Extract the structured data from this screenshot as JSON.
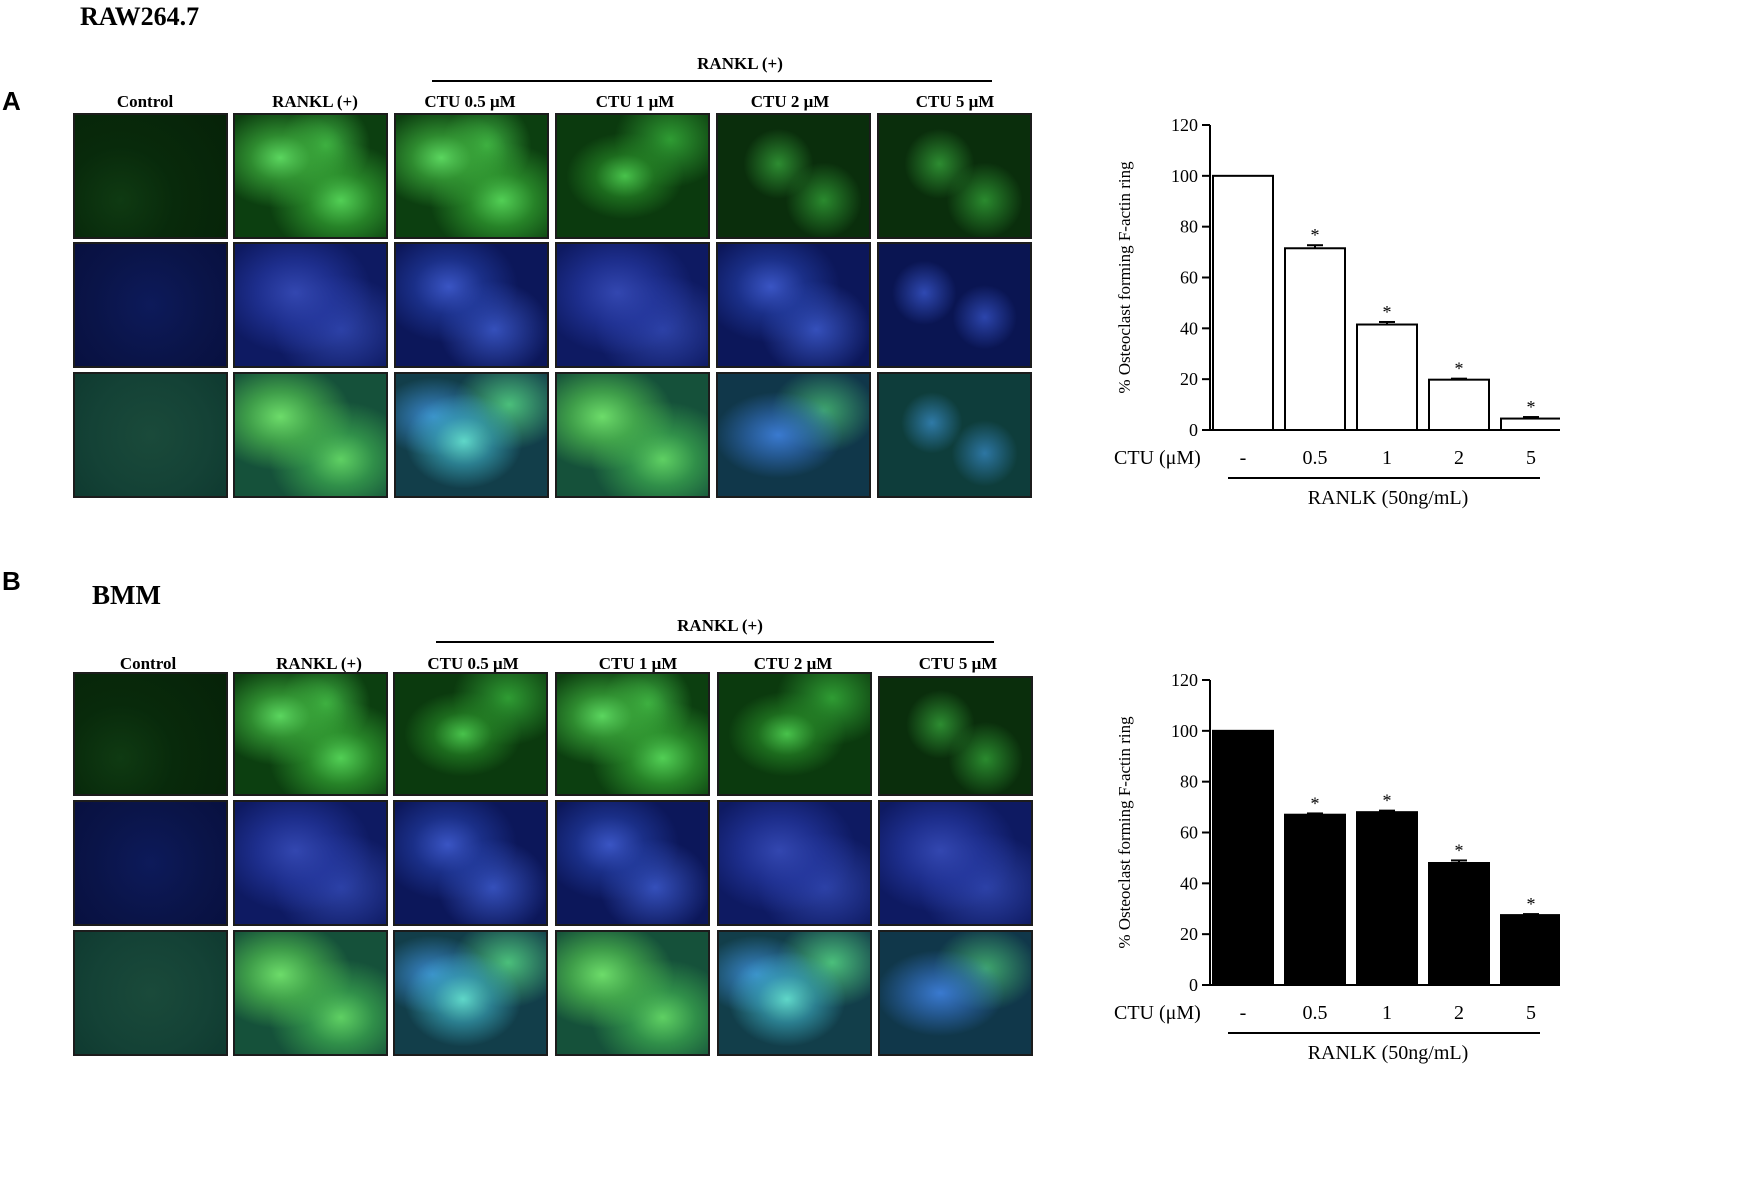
{
  "panel_a": {
    "letter": "A",
    "cell_line": "RAW264.7",
    "rankl_header": "RANKL (+)",
    "columns": [
      "Control",
      "RANKL (+)",
      "CTU 0.5 μM",
      "CTU 1 μM",
      "CTU 2 μM",
      "CTU 5 μM"
    ]
  },
  "panel_b": {
    "letter": "B",
    "cell_line": "BMM",
    "rankl_header": "RANKL (+)",
    "columns": [
      "Control",
      "RANKL (+)",
      "CTU 0.5 μM",
      "CTU 1 μM",
      "CTU 2 μM",
      "CTU 5 μM"
    ]
  },
  "colors": {
    "bar_a_fill": "#ffffff",
    "bar_b_fill": "#000000",
    "axis": "#000000"
  },
  "chart_data": [
    {
      "type": "bar",
      "categories": [
        "-",
        "0.5",
        "1",
        "2",
        "5"
      ],
      "values": [
        100,
        71.5,
        41.5,
        19.8,
        4.5
      ],
      "errors": [
        0,
        1.2,
        1.0,
        0.4,
        0.6
      ],
      "significant": [
        "",
        "*",
        "*",
        "*",
        "*"
      ],
      "ylabel": "% Osteoclast forming F-actin ring",
      "xlabel_prefix": "CTU (μM)",
      "group_label": "RANLK (50ng/mL)",
      "yticks": [
        "0",
        "20",
        "40",
        "60",
        "80",
        "100",
        "120"
      ],
      "ylim": [
        0,
        120
      ],
      "fill": "white"
    },
    {
      "type": "bar",
      "categories": [
        "-",
        "0.5",
        "1",
        "2",
        "5"
      ],
      "values": [
        100,
        67,
        68,
        48,
        27.5
      ],
      "errors": [
        0,
        0.5,
        0.6,
        1.0,
        0.4
      ],
      "significant": [
        "",
        "*",
        "*",
        "*",
        "*"
      ],
      "ylabel": "% Osteoclast forming F-actin ring",
      "xlabel_prefix": "CTU (μM)",
      "group_label": "RANLK (50ng/mL)",
      "yticks": [
        "0",
        "20",
        "40",
        "60",
        "80",
        "100",
        "120"
      ],
      "ylim": [
        0,
        120
      ],
      "fill": "black"
    }
  ]
}
